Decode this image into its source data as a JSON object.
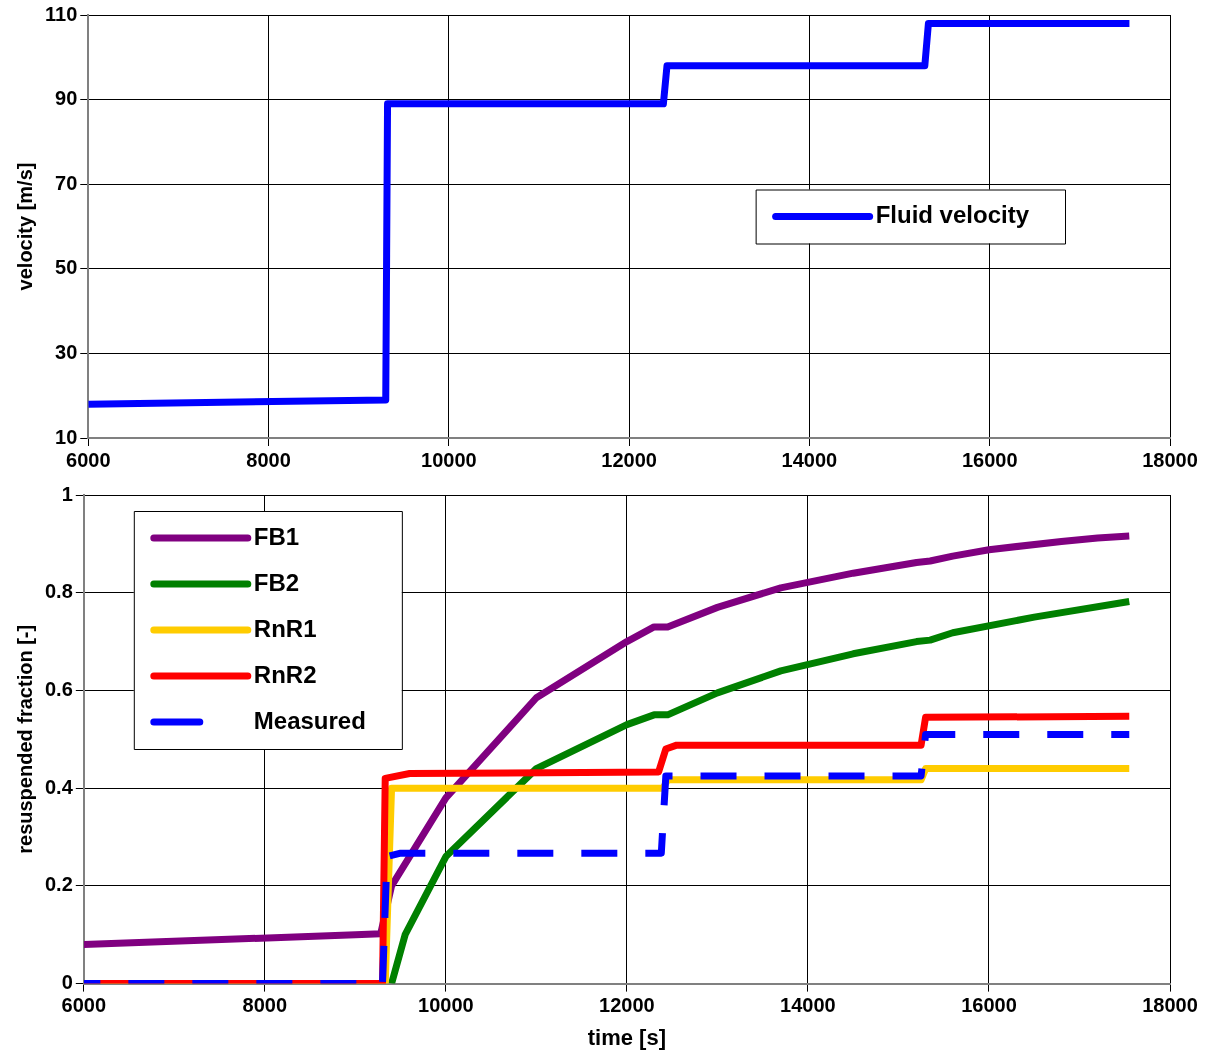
{
  "chart_data": [
    {
      "type": "line",
      "ylabel": "velocity [m/s]",
      "xlim": [
        6000,
        18000
      ],
      "xticks": [
        6000,
        8000,
        10000,
        12000,
        14000,
        16000,
        18000
      ],
      "ylim": [
        10,
        110
      ],
      "yticks": [
        10,
        30,
        50,
        70,
        90,
        110
      ],
      "grid": true,
      "legend": "right",
      "marker": "none",
      "series": [
        {
          "name": "Fluid velocity",
          "color": "#0000ff",
          "x": [
            6000,
            9300,
            9320,
            12380,
            12420,
            15280,
            15320,
            17550
          ],
          "values": [
            18,
            19,
            89,
            89,
            98,
            98,
            108,
            108
          ]
        }
      ]
    },
    {
      "type": "line",
      "xlabel": "time [s]",
      "ylabel": "resuspended fraction [-]",
      "xlim": [
        6000,
        18000
      ],
      "xticks": [
        6000,
        8000,
        10000,
        12000,
        14000,
        16000,
        18000
      ],
      "ylim": [
        0,
        1
      ],
      "yticks": [
        0,
        0.2,
        0.4,
        0.6,
        0.8,
        1
      ],
      "grid": true,
      "legend": "top left",
      "marker": "none",
      "series": [
        {
          "name": "FB1",
          "color": "#800080",
          "x": [
            6000,
            9000,
            9280,
            9400,
            10000,
            11000,
            12000,
            12300,
            12450,
            13000,
            13700,
            14500,
            15200,
            15350,
            15600,
            16000,
            16800,
            17200,
            17550
          ],
          "values": [
            0.08,
            0.1,
            0.102,
            0.2,
            0.38,
            0.585,
            0.7,
            0.73,
            0.73,
            0.77,
            0.81,
            0.84,
            0.862,
            0.865,
            0.875,
            0.888,
            0.905,
            0.912,
            0.916
          ]
        },
        {
          "name": "FB2",
          "color": "#008000",
          "x": [
            9400,
            9550,
            10000,
            11000,
            12000,
            12300,
            12450,
            13000,
            13700,
            14500,
            15200,
            15350,
            15600,
            16500,
            17550
          ],
          "values": [
            0,
            0.1,
            0.26,
            0.44,
            0.53,
            0.55,
            0.55,
            0.595,
            0.64,
            0.675,
            0.7,
            0.703,
            0.718,
            0.75,
            0.782
          ]
        },
        {
          "name": "RnR1",
          "color": "#ffcc00",
          "x": [
            6000,
            9330,
            9400,
            12400,
            12450,
            15250,
            15300,
            17550
          ],
          "values": [
            0,
            0,
            0.4,
            0.4,
            0.417,
            0.417,
            0.44,
            0.44
          ]
        },
        {
          "name": "RnR2",
          "color": "#ff0000",
          "x": [
            6000,
            9300,
            9330,
            9600,
            12350,
            12430,
            12550,
            15250,
            15300,
            17550
          ],
          "values": [
            0,
            0,
            0.42,
            0.43,
            0.433,
            0.48,
            0.488,
            0.488,
            0.545,
            0.547
          ]
        },
        {
          "name": "Measured",
          "color": "#0000ff",
          "line_style": "dashed",
          "x": [
            6000,
            9300,
            9350,
            9500,
            12380,
            12430,
            15250,
            15300,
            17550
          ],
          "values": [
            0,
            0,
            0.26,
            0.267,
            0.267,
            0.425,
            0.425,
            0.51,
            0.51
          ]
        }
      ]
    }
  ]
}
